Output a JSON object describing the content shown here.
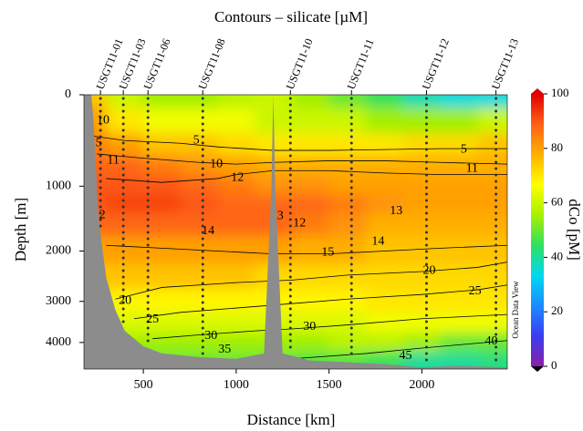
{
  "chart_data": {
    "type": "section",
    "title": "Contours – silicate [µM]",
    "xlabel": "Distance [km]",
    "ylabel": "Depth [m]",
    "colorbar_label": "dCo [pM]",
    "watermark": "Ocean Data View",
    "xlim": [
      180,
      2460
    ],
    "xticks": [
      500,
      1000,
      1500,
      2000
    ],
    "ylim": [
      0,
      4750
    ],
    "yticks": [
      0,
      1000,
      2000,
      3000,
      4000
    ],
    "y_reversed": true,
    "clim": [
      0,
      100
    ],
    "cticks": [
      0,
      20,
      40,
      60,
      80,
      100
    ],
    "colormap": [
      "#8c1fa8",
      "#3a3cf0",
      "#1a8cff",
      "#00d8f0",
      "#30e060",
      "#a8f000",
      "#ffff00",
      "#ffb000",
      "#ff6018",
      "#e00000"
    ],
    "stations": [
      {
        "name": "USGT11-01",
        "x": 269
      },
      {
        "name": "USGT11-03",
        "x": 392
      },
      {
        "name": "USGT11-06",
        "x": 525
      },
      {
        "name": "USGT11-08",
        "x": 820
      },
      {
        "name": "USGT11-10",
        "x": 1292
      },
      {
        "name": "USGT11-11",
        "x": 1621
      },
      {
        "name": "USGT11-12",
        "x": 2025
      },
      {
        "name": "USGT11-13",
        "x": 2399
      }
    ],
    "grid_x": [
      200,
      400,
      600,
      800,
      1000,
      1200,
      1400,
      1600,
      1800,
      2000,
      2200,
      2400
    ],
    "grid_depth": [
      0,
      250,
      500,
      750,
      1000,
      1250,
      1500,
      2000,
      2500,
      3000,
      3500,
      4000,
      4500
    ],
    "dco": [
      [
        75,
        60,
        55,
        55,
        58,
        60,
        55,
        50,
        45,
        38,
        35,
        35
      ],
      [
        80,
        70,
        65,
        65,
        65,
        60,
        60,
        60,
        55,
        55,
        55,
        60
      ],
      [
        85,
        80,
        75,
        75,
        72,
        70,
        70,
        70,
        70,
        72,
        72,
        75
      ],
      [
        88,
        88,
        85,
        82,
        80,
        78,
        78,
        78,
        78,
        78,
        78,
        78
      ],
      [
        90,
        90,
        90,
        88,
        85,
        82,
        82,
        80,
        80,
        80,
        80,
        80
      ],
      [
        90,
        92,
        92,
        90,
        88,
        88,
        88,
        85,
        82,
        80,
        80,
        80
      ],
      [
        88,
        88,
        88,
        88,
        88,
        88,
        85,
        82,
        78,
        78,
        78,
        78
      ],
      [
        80,
        80,
        80,
        80,
        80,
        80,
        78,
        78,
        75,
        75,
        75,
        75
      ],
      [
        75,
        75,
        75,
        75,
        75,
        72,
        72,
        72,
        72,
        72,
        72,
        72
      ],
      [
        70,
        68,
        68,
        68,
        68,
        68,
        68,
        68,
        70,
        70,
        70,
        70
      ],
      [
        62,
        62,
        62,
        62,
        62,
        62,
        62,
        62,
        65,
        65,
        65,
        65
      ],
      [
        55,
        55,
        55,
        55,
        55,
        55,
        55,
        58,
        58,
        55,
        50,
        50
      ],
      [
        50,
        50,
        50,
        50,
        50,
        50,
        48,
        48,
        45,
        40,
        40,
        42
      ]
    ],
    "bottom": {
      "x": [
        180,
        220,
        230,
        260,
        300,
        350,
        400,
        500,
        600,
        800,
        1000,
        1150,
        1190,
        1200,
        1210,
        1250,
        1400,
        1600,
        1800,
        2000,
        2200,
        2460
      ],
      "depth": [
        0,
        0,
        200,
        1500,
        2500,
        3200,
        3700,
        4100,
        4300,
        4400,
        4450,
        4300,
        1000,
        0,
        1000,
        4300,
        4500,
        4550,
        4600,
        4700,
        4650,
        4700
      ]
    },
    "contours": [
      {
        "level": 5,
        "x": [
          220,
          400,
          700,
          900,
          1200,
          1500,
          1800,
          2100,
          2460
        ],
        "depth": [
          400,
          450,
          480,
          520,
          560,
          560,
          550,
          540,
          540
        ]
      },
      {
        "level": 10,
        "x": [
          250,
          500,
          800,
          1000,
          1200,
          1500,
          1800,
          2100,
          2460
        ],
        "depth": [
          600,
          650,
          700,
          720,
          700,
          680,
          680,
          700,
          720
        ]
      },
      {
        "level": 12,
        "x": [
          300,
          600,
          900,
          1000,
          1200,
          1500,
          1800,
          2100,
          2460
        ],
        "depth": [
          900,
          950,
          900,
          850,
          800,
          800,
          830,
          850,
          850
        ]
      },
      {
        "level": 15,
        "x": [
          300,
          600,
          900,
          1200,
          1500,
          1800,
          2100,
          2460
        ],
        "depth": [
          1900,
          1950,
          2000,
          2050,
          2050,
          2000,
          1950,
          1900
        ]
      },
      {
        "level": 20,
        "x": [
          350,
          600,
          1000,
          1300,
          1600,
          2000,
          2300,
          2460
        ],
        "depth": [
          2950,
          2700,
          2600,
          2550,
          2450,
          2380,
          2300,
          2200
        ]
      },
      {
        "level": 25,
        "x": [
          450,
          700,
          1000,
          1300,
          1600,
          2000,
          2300,
          2460
        ],
        "depth": [
          3400,
          3250,
          3150,
          3050,
          2950,
          2850,
          2750,
          2650
        ]
      },
      {
        "level": 30,
        "x": [
          550,
          800,
          1100,
          1300,
          1600,
          2000,
          2460
        ],
        "depth": [
          3900,
          3800,
          3700,
          3650,
          3550,
          3400,
          3300
        ]
      },
      {
        "level": 40,
        "x": [
          1300,
          1700,
          2000,
          2460
        ],
        "depth": [
          4450,
          4300,
          4150,
          3950
        ]
      }
    ],
    "contour_labels": [
      {
        "text": "10",
        "x": 283,
        "depth": 240
      },
      {
        "text": "5",
        "x": 259,
        "depth": 480
      },
      {
        "text": "11",
        "x": 338,
        "depth": 678
      },
      {
        "text": "2",
        "x": 279,
        "depth": 1415
      },
      {
        "text": "3",
        "x": 1238,
        "depth": 1430
      },
      {
        "text": "5",
        "x": 785,
        "depth": 450
      },
      {
        "text": "5",
        "x": 2226,
        "depth": 550
      },
      {
        "text": "10",
        "x": 893,
        "depth": 720
      },
      {
        "text": "12",
        "x": 1007,
        "depth": 893
      },
      {
        "text": "11",
        "x": 2270,
        "depth": 780
      },
      {
        "text": "13",
        "x": 1862,
        "depth": 1350
      },
      {
        "text": "12",
        "x": 1341,
        "depth": 1540
      },
      {
        "text": "14",
        "x": 849,
        "depth": 1660
      },
      {
        "text": "14",
        "x": 1764,
        "depth": 1840
      },
      {
        "text": "15",
        "x": 1494,
        "depth": 2030
      },
      {
        "text": "20",
        "x": 2040,
        "depth": 2370
      },
      {
        "text": "25",
        "x": 2286,
        "depth": 2780
      },
      {
        "text": "20",
        "x": 402,
        "depth": 2990
      },
      {
        "text": "25",
        "x": 549,
        "depth": 3420
      },
      {
        "text": "30",
        "x": 864,
        "depth": 3830
      },
      {
        "text": "30",
        "x": 1395,
        "depth": 3600
      },
      {
        "text": "35",
        "x": 938,
        "depth": 4200
      },
      {
        "text": "40",
        "x": 2374,
        "depth": 3980
      },
      {
        "text": "45",
        "x": 1912,
        "depth": 4370
      }
    ]
  }
}
